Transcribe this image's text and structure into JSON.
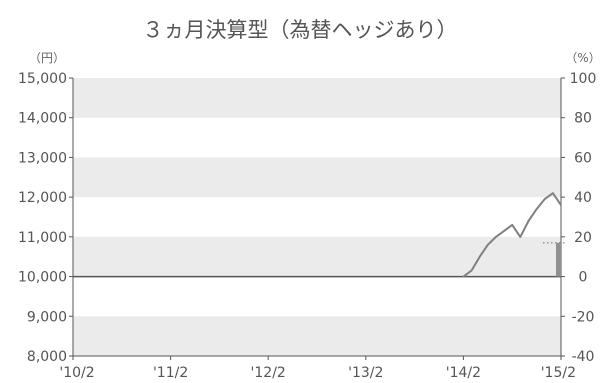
{
  "chart_data": {
    "type": "line",
    "title": "３ヵ月決算型（為替ヘッジあり）",
    "left_unit": "（円）",
    "right_unit": "（%）",
    "x_ticks": [
      "'10/2",
      "'11/2",
      "'12/2",
      "'13/2",
      "'14/2",
      "'15/2"
    ],
    "y_left_ticks": [
      "15,000",
      "14,000",
      "13,000",
      "12,000",
      "11,000",
      "10,000",
      "9,000",
      "8,000"
    ],
    "y_right_ticks": [
      "100",
      "80",
      "60",
      "40",
      "20",
      "0",
      "-20",
      "-40"
    ],
    "y_left_range": [
      8000,
      15000
    ],
    "y_right_range": [
      -40,
      100
    ],
    "x_range": [
      "2010-02",
      "2015-02"
    ],
    "grid": "alternating horizontal bands",
    "series": [
      {
        "kind": "line",
        "color": "#808080",
        "axis": "left",
        "points": [
          {
            "x": "2014-02",
            "y": 10000
          },
          {
            "x": "2014-03",
            "y": 10150
          },
          {
            "x": "2014-04",
            "y": 10500
          },
          {
            "x": "2014-05",
            "y": 10800
          },
          {
            "x": "2014-06",
            "y": 11000
          },
          {
            "x": "2014-07",
            "y": 11150
          },
          {
            "x": "2014-08",
            "y": 11300
          },
          {
            "x": "2014-09",
            "y": 11000
          },
          {
            "x": "2014-10",
            "y": 11400
          },
          {
            "x": "2014-11",
            "y": 11700
          },
          {
            "x": "2014-12",
            "y": 11950
          },
          {
            "x": "2015-01",
            "y": 12100
          },
          {
            "x": "2015-02",
            "y": 11800
          }
        ]
      },
      {
        "kind": "bar",
        "color": "#909090",
        "axis": "right",
        "points": [
          {
            "x": "2015-02",
            "y": 17
          }
        ]
      }
    ],
    "reference_line": {
      "axis": "right",
      "y": 17,
      "style": "dotted"
    }
  }
}
